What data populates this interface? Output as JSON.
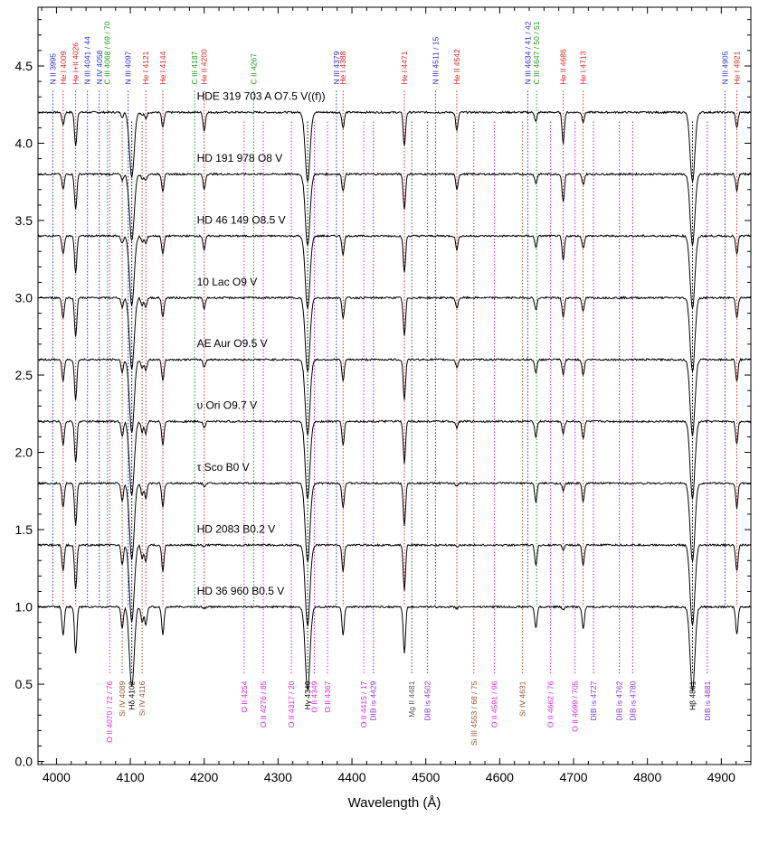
{
  "chart_data": {
    "type": "line",
    "title": "",
    "xlabel": "Wavelength (Å)",
    "ylabel": "",
    "xlim": [
      3975,
      4940
    ],
    "ylim": [
      -0.02,
      4.88
    ],
    "x_ticks": [
      4000,
      4100,
      4200,
      4300,
      4400,
      4500,
      4600,
      4700,
      4800,
      4900
    ],
    "y_ticks": [
      0.0,
      0.5,
      1.0,
      1.5,
      2.0,
      2.5,
      3.0,
      3.5,
      4.0,
      4.5
    ],
    "series": [
      {
        "name": "HDE 319 703 A   O7.5 V((f))",
        "offset": 4.2,
        "label_wl": 4190,
        "label_y": 4.28
      },
      {
        "name": "HD 191 978   O8 V",
        "offset": 3.8,
        "label_wl": 4190,
        "label_y": 3.88
      },
      {
        "name": "HD 46 149   O8.5 V",
        "offset": 3.4,
        "label_wl": 4190,
        "label_y": 3.48
      },
      {
        "name": "10 Lac   O9 V",
        "offset": 3.0,
        "label_wl": 4190,
        "label_y": 3.08
      },
      {
        "name": "AE Aur   O9.5 V",
        "offset": 2.6,
        "label_wl": 4190,
        "label_y": 2.68
      },
      {
        "name": "υ Ori   O9.7 V",
        "offset": 2.2,
        "label_wl": 4190,
        "label_y": 2.28
      },
      {
        "name": "τ Sco   B0 V",
        "offset": 1.8,
        "label_wl": 4190,
        "label_y": 1.88
      },
      {
        "name": "HD 2083   B0.2 V",
        "offset": 1.4,
        "label_wl": 4190,
        "label_y": 1.48
      },
      {
        "name": "HD 36 960   B0.5 V",
        "offset": 1.0,
        "label_wl": 4190,
        "label_y": 1.08
      }
    ],
    "lines": [
      {
        "wl": 4009,
        "depth": [
          0.08,
          0.1,
          0.12,
          0.13,
          0.14,
          0.15,
          0.16,
          0.17,
          0.18
        ]
      },
      {
        "wl": 4026,
        "depth": [
          0.22,
          0.23,
          0.24,
          0.25,
          0.26,
          0.27,
          0.28,
          0.29,
          0.3
        ]
      },
      {
        "wl": 4089,
        "depth": [
          0.03,
          0.04,
          0.05,
          0.06,
          0.08,
          0.1,
          0.12,
          0.13,
          0.14
        ]
      },
      {
        "wl": 4102,
        "depth": [
          0.42,
          0.43,
          0.45,
          0.46,
          0.47,
          0.48,
          0.49,
          0.5,
          0.52
        ]
      },
      {
        "wl": 4116,
        "depth": [
          0.02,
          0.03,
          0.04,
          0.05,
          0.06,
          0.07,
          0.08,
          0.09,
          0.1
        ]
      },
      {
        "wl": 4121,
        "depth": [
          0.04,
          0.04,
          0.05,
          0.06,
          0.07,
          0.08,
          0.1,
          0.11,
          0.12
        ]
      },
      {
        "wl": 4144,
        "depth": [
          0.1,
          0.11,
          0.12,
          0.13,
          0.14,
          0.15,
          0.16,
          0.17,
          0.18
        ]
      },
      {
        "wl": 4200,
        "depth": [
          0.12,
          0.1,
          0.09,
          0.07,
          0.05,
          0.04,
          0.02,
          0.01,
          0.01
        ]
      },
      {
        "wl": 4340,
        "depth": [
          0.45,
          0.46,
          0.47,
          0.48,
          0.49,
          0.5,
          0.51,
          0.52,
          0.54
        ]
      },
      {
        "wl": 4388,
        "depth": [
          0.1,
          0.11,
          0.12,
          0.13,
          0.14,
          0.15,
          0.16,
          0.17,
          0.18
        ]
      },
      {
        "wl": 4471,
        "depth": [
          0.22,
          0.23,
          0.24,
          0.25,
          0.26,
          0.27,
          0.28,
          0.29,
          0.3
        ]
      },
      {
        "wl": 4542,
        "depth": [
          0.12,
          0.1,
          0.09,
          0.07,
          0.05,
          0.04,
          0.02,
          0.01,
          0.01
        ]
      },
      {
        "wl": 4649,
        "depth": [
          0.06,
          0.06,
          0.07,
          0.08,
          0.09,
          0.1,
          0.12,
          0.13,
          0.14
        ]
      },
      {
        "wl": 4686,
        "depth": [
          0.2,
          0.18,
          0.16,
          0.13,
          0.1,
          0.08,
          0.05,
          0.03,
          0.02
        ]
      },
      {
        "wl": 4713,
        "depth": [
          0.06,
          0.07,
          0.08,
          0.09,
          0.1,
          0.11,
          0.12,
          0.13,
          0.14
        ]
      },
      {
        "wl": 4861,
        "depth": [
          0.45,
          0.46,
          0.47,
          0.48,
          0.49,
          0.5,
          0.51,
          0.52,
          0.54
        ]
      },
      {
        "wl": 4921,
        "depth": [
          0.1,
          0.11,
          0.12,
          0.13,
          0.14,
          0.15,
          0.16,
          0.17,
          0.18
        ]
      }
    ],
    "top_markers": [
      {
        "label": "N II 3995",
        "wl": 3995,
        "color": "#2a2ae0"
      },
      {
        "label": "He I 4009",
        "wl": 4009,
        "color": "#e02020"
      },
      {
        "label": "He I+II 4026",
        "wl": 4026,
        "color": "#e02020"
      },
      {
        "label": "N III 4041 / 44",
        "wl": 4042,
        "color": "#2a2ae0"
      },
      {
        "label": "N IV 4058",
        "wl": 4058,
        "color": "#2a2ae0"
      },
      {
        "label": "C III 4068 / 69 / 70",
        "wl": 4069,
        "color": "#1a9a1a"
      },
      {
        "label": "N III 4097",
        "wl": 4097,
        "color": "#2a2ae0"
      },
      {
        "label": "He I 4121",
        "wl": 4121,
        "color": "#e02020"
      },
      {
        "label": "He I 4144",
        "wl": 4144,
        "color": "#e02020"
      },
      {
        "label": "C III 4187",
        "wl": 4187,
        "color": "#1a9a1a"
      },
      {
        "label": "He II 4200",
        "wl": 4200,
        "color": "#e02020"
      },
      {
        "label": "C II 4267",
        "wl": 4267,
        "color": "#1a9a1a"
      },
      {
        "label": "N III 4379",
        "wl": 4379,
        "color": "#2a2ae0"
      },
      {
        "label": "He I 4388",
        "wl": 4388,
        "color": "#e02020"
      },
      {
        "label": "He I 4471",
        "wl": 4471,
        "color": "#e02020"
      },
      {
        "label": "N III 4511 / 15",
        "wl": 4513,
        "color": "#2a2ae0"
      },
      {
        "label": "He II 4542",
        "wl": 4542,
        "color": "#e02020"
      },
      {
        "label": "N III 4634 / 41 / 42",
        "wl": 4638,
        "color": "#2a2ae0"
      },
      {
        "label": "C III 4647 / 50 / 51",
        "wl": 4650,
        "color": "#1a9a1a"
      },
      {
        "label": "He II 4686",
        "wl": 4686,
        "color": "#e02020"
      },
      {
        "label": "He I 4713",
        "wl": 4713,
        "color": "#e02020"
      },
      {
        "label": "N III 4905",
        "wl": 4905,
        "color": "#2a2ae0"
      },
      {
        "label": "He I 4921",
        "wl": 4921,
        "color": "#e02020"
      }
    ],
    "bottom_markers": [
      {
        "label": "O II 4070 / 72 / 76",
        "wl": 4072,
        "color": "#e020e0"
      },
      {
        "label": "Si IV 4089",
        "wl": 4089,
        "color": "#a0522d"
      },
      {
        "label": "Hδ 4102",
        "wl": 4102,
        "color": "#000000"
      },
      {
        "label": "Si IV 4116",
        "wl": 4116,
        "color": "#a0522d"
      },
      {
        "label": "O II 4254",
        "wl": 4254,
        "color": "#e020e0"
      },
      {
        "label": "O II 4276 / 85",
        "wl": 4280,
        "color": "#e020e0"
      },
      {
        "label": "O II 4317 / 20",
        "wl": 4318,
        "color": "#e020e0"
      },
      {
        "label": "Hγ 4340",
        "wl": 4340,
        "color": "#000000"
      },
      {
        "label": "O II 4349",
        "wl": 4349,
        "color": "#e020e0"
      },
      {
        "label": "O II 4367",
        "wl": 4367,
        "color": "#e020e0"
      },
      {
        "label": "O II 4415 / 17",
        "wl": 4416,
        "color": "#e020e0"
      },
      {
        "label": "DIB is 4429",
        "wl": 4429,
        "color": "#8a2be2"
      },
      {
        "label": "Mg II 4481",
        "wl": 4481,
        "color": "#555555"
      },
      {
        "label": "DIB is 4502",
        "wl": 4502,
        "color": "#8a2be2"
      },
      {
        "label": "Si III 4553 / 68 / 75",
        "wl": 4565,
        "color": "#a0522d"
      },
      {
        "label": "O II 4591 / 96",
        "wl": 4593,
        "color": "#e020e0"
      },
      {
        "label": "Si IV 4631",
        "wl": 4631,
        "color": "#a0522d"
      },
      {
        "label": "O II 4662 / 76",
        "wl": 4669,
        "color": "#e020e0"
      },
      {
        "label": "O II 4699 / 705",
        "wl": 4702,
        "color": "#e020e0"
      },
      {
        "label": "DIB is 4727",
        "wl": 4727,
        "color": "#8a2be2"
      },
      {
        "label": "DIB is 4762",
        "wl": 4762,
        "color": "#8a2be2"
      },
      {
        "label": "DIB is 4780",
        "wl": 4780,
        "color": "#8a2be2"
      },
      {
        "label": "Hβ 4861",
        "wl": 4861,
        "color": "#000000"
      },
      {
        "label": "DIB is 4881",
        "wl": 4881,
        "color": "#8a2be2"
      }
    ]
  }
}
